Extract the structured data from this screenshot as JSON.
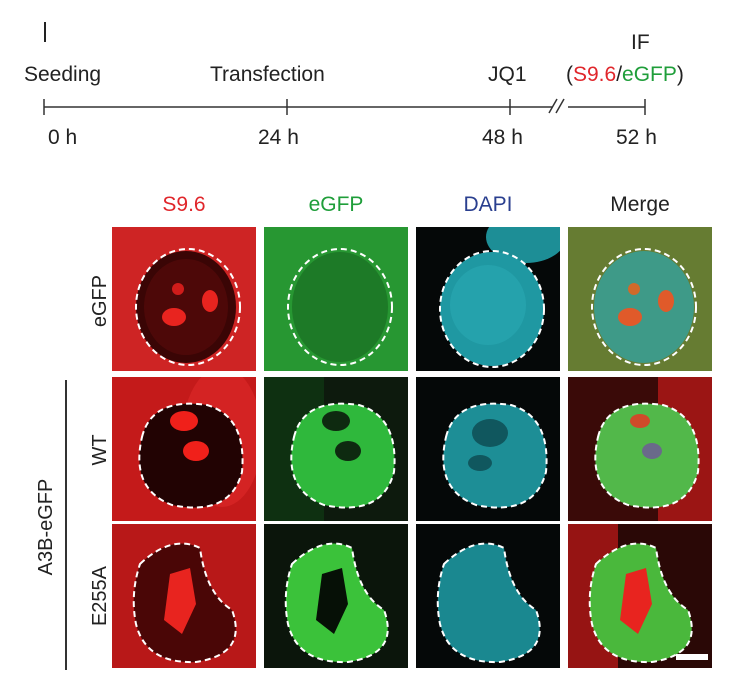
{
  "timeline": {
    "events": [
      {
        "label": "Seeding",
        "time": "0 h"
      },
      {
        "label": "Transfection",
        "time": "24 h"
      },
      {
        "label": "JQ1",
        "time": "48 h"
      },
      {
        "label": "IF",
        "time": "52 h"
      }
    ],
    "if_detail": {
      "open": "(",
      "s96": "S9.6",
      "slash": "/",
      "egfp": "eGFP",
      "close": ")"
    }
  },
  "columns": [
    "S9.6",
    "eGFP",
    "DAPI",
    "Merge"
  ],
  "rows": [
    "eGFP",
    "WT",
    "E255A"
  ],
  "group_label": "A3B-eGFP",
  "colors": {
    "s96": "#e0262b",
    "egfp": "#1f9e3a",
    "dapi": "#2a3f8f"
  }
}
